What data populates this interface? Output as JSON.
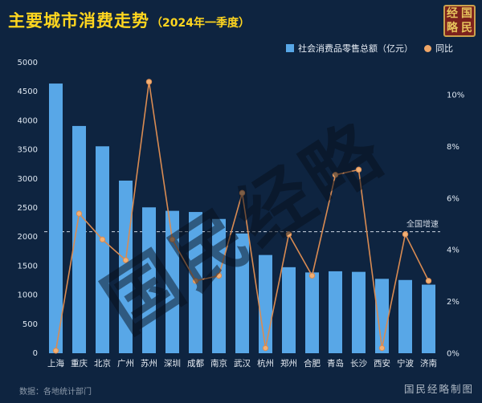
{
  "title": {
    "main": "主要城市消费走势",
    "sub": "（2024年一季度）"
  },
  "logo": {
    "chars": [
      "经",
      "国",
      "略",
      "民"
    ]
  },
  "legend": {
    "items": [
      {
        "label": "社会消费品零售总额（亿元）",
        "color": "#58a7e7",
        "shape": "square"
      },
      {
        "label": "同比",
        "color": "#efa667",
        "shape": "circle"
      }
    ]
  },
  "watermark": "国民经略",
  "footer": {
    "source": "数据：各地统计部门",
    "credit": "国民经略制图"
  },
  "colors": {
    "background": "#0e2440",
    "title": "#ffd61f",
    "bar": "#58a7e7",
    "line": "#d98b52",
    "dot": "#f2b074",
    "axis_text": "#dde6f0",
    "reference": "#cdd6e2"
  },
  "chart_data": {
    "type": "bar",
    "subtype": "bar+line combo",
    "title": "主要城市消费走势（2024年一季度）",
    "categories": [
      "上海",
      "重庆",
      "北京",
      "广州",
      "苏州",
      "深圳",
      "成都",
      "南京",
      "武汉",
      "杭州",
      "郑州",
      "合肥",
      "青岛",
      "长沙",
      "西安",
      "宁波",
      "济南"
    ],
    "series": [
      {
        "name": "社会消费品零售总额（亿元）",
        "type": "bar",
        "axis": "left",
        "color": "#58a7e7",
        "values": [
          4640,
          3910,
          3560,
          2970,
          2510,
          2450,
          2430,
          2310,
          2060,
          1690,
          1480,
          1390,
          1410,
          1400,
          1280,
          1260,
          1180
        ]
      },
      {
        "name": "同比",
        "type": "line",
        "axis": "right",
        "color": "#d98b52",
        "values": [
          0.1,
          5.4,
          4.4,
          3.6,
          10.5,
          4.4,
          2.8,
          3.0,
          6.2,
          0.2,
          4.6,
          3.0,
          6.9,
          7.1,
          0.2,
          4.6,
          2.8
        ]
      }
    ],
    "left_axis": {
      "min": 0,
      "max": 5000,
      "step": 500,
      "labels": [
        "0",
        "500",
        "1000",
        "1500",
        "2000",
        "2500",
        "3000",
        "3500",
        "4000",
        "4500",
        "5000"
      ]
    },
    "right_axis": {
      "min": 0,
      "max": 10,
      "step": 2,
      "unit": "%",
      "labels": [
        "0%",
        "2%",
        "4%",
        "6%",
        "8%",
        "10%"
      ]
    },
    "reference_line": {
      "label": "全国增速",
      "value": 4.7,
      "axis": "right",
      "style": "dashed"
    },
    "grid": false,
    "legend_position": "top-right"
  }
}
